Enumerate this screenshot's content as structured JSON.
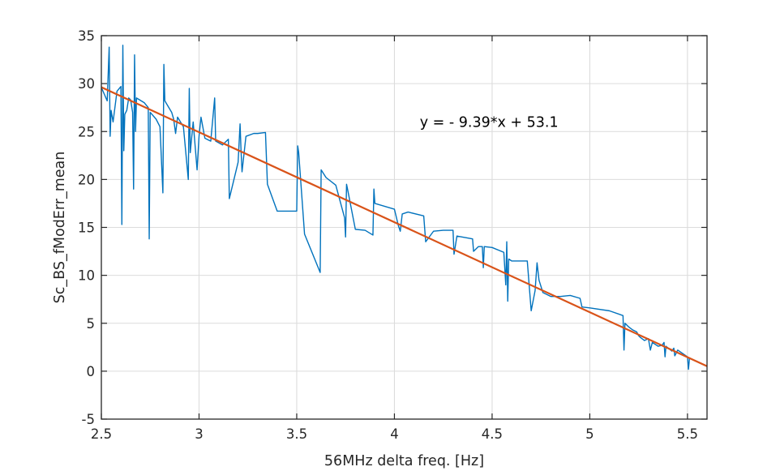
{
  "chart_data": {
    "type": "line",
    "xlabel": "56MHz delta freq. [Hz]",
    "ylabel": "Sc_BS_fModErr_mean",
    "xlim": [
      2.5,
      5.6
    ],
    "ylim": [
      -5,
      35
    ],
    "xticks": [
      2.5,
      3,
      3.5,
      4,
      4.5,
      5,
      5.5
    ],
    "xtick_labels": [
      "2.5",
      "3",
      "3.5",
      "4",
      "4.5",
      "5",
      "5.5"
    ],
    "yticks": [
      -5,
      0,
      5,
      10,
      15,
      20,
      25,
      30,
      35
    ],
    "ytick_labels": [
      "-5",
      "0",
      "5",
      "10",
      "15",
      "20",
      "25",
      "30",
      "35"
    ],
    "grid": true,
    "annotation": {
      "text": "y = - 9.39*x + 53.1",
      "x": 4.13,
      "y": 25.5
    },
    "series": [
      {
        "kind": "data",
        "color": "#0072BD",
        "points": [
          [
            2.5,
            29.6
          ],
          [
            2.53,
            28.2
          ],
          [
            2.54,
            33.8
          ],
          [
            2.545,
            24.5
          ],
          [
            2.55,
            27.2
          ],
          [
            2.56,
            26.0
          ],
          [
            2.58,
            29.2
          ],
          [
            2.6,
            29.7
          ],
          [
            2.605,
            15.3
          ],
          [
            2.61,
            34.0
          ],
          [
            2.615,
            23.0
          ],
          [
            2.62,
            26.8
          ],
          [
            2.63,
            27.2
          ],
          [
            2.64,
            28.5
          ],
          [
            2.65,
            28.3
          ],
          [
            2.66,
            27.0
          ],
          [
            2.665,
            19.0
          ],
          [
            2.67,
            33.0
          ],
          [
            2.675,
            25.0
          ],
          [
            2.68,
            28.5
          ],
          [
            2.72,
            28.0
          ],
          [
            2.74,
            27.5
          ],
          [
            2.745,
            13.8
          ],
          [
            2.75,
            27.0
          ],
          [
            2.78,
            26.3
          ],
          [
            2.8,
            25.5
          ],
          [
            2.815,
            18.6
          ],
          [
            2.82,
            32.0
          ],
          [
            2.825,
            28.2
          ],
          [
            2.86,
            27.0
          ],
          [
            2.87,
            26.3
          ],
          [
            2.88,
            24.8
          ],
          [
            2.89,
            26.5
          ],
          [
            2.92,
            25.5
          ],
          [
            2.945,
            20.0
          ],
          [
            2.95,
            29.5
          ],
          [
            2.955,
            22.8
          ],
          [
            2.97,
            26.0
          ],
          [
            2.99,
            21.0
          ],
          [
            3.0,
            24.5
          ],
          [
            3.01,
            26.5
          ],
          [
            3.03,
            24.3
          ],
          [
            3.06,
            24.0
          ],
          [
            3.08,
            28.5
          ],
          [
            3.085,
            24.0
          ],
          [
            3.12,
            23.6
          ],
          [
            3.15,
            24.2
          ],
          [
            3.155,
            18.0
          ],
          [
            3.2,
            21.8
          ],
          [
            3.21,
            25.8
          ],
          [
            3.215,
            23.0
          ],
          [
            3.22,
            20.8
          ],
          [
            3.24,
            24.5
          ],
          [
            3.28,
            24.8
          ],
          [
            3.3,
            24.8
          ],
          [
            3.34,
            24.9
          ],
          [
            3.35,
            19.5
          ],
          [
            3.4,
            16.7
          ],
          [
            3.5,
            16.7
          ],
          [
            3.505,
            23.5
          ],
          [
            3.51,
            22.8
          ],
          [
            3.54,
            14.3
          ],
          [
            3.62,
            10.3
          ],
          [
            3.625,
            21.0
          ],
          [
            3.65,
            20.2
          ],
          [
            3.7,
            19.4
          ],
          [
            3.745,
            16.0
          ],
          [
            3.75,
            14.0
          ],
          [
            3.755,
            19.5
          ],
          [
            3.76,
            19.0
          ],
          [
            3.8,
            14.8
          ],
          [
            3.85,
            14.7
          ],
          [
            3.89,
            14.2
          ],
          [
            3.895,
            19.0
          ],
          [
            3.9,
            17.5
          ],
          [
            4.0,
            16.9
          ],
          [
            4.02,
            15.2
          ],
          [
            4.03,
            14.6
          ],
          [
            4.04,
            16.4
          ],
          [
            4.07,
            16.6
          ],
          [
            4.15,
            16.2
          ],
          [
            4.16,
            13.5
          ],
          [
            4.2,
            14.6
          ],
          [
            4.25,
            14.7
          ],
          [
            4.3,
            14.7
          ],
          [
            4.305,
            12.2
          ],
          [
            4.32,
            14.1
          ],
          [
            4.4,
            13.8
          ],
          [
            4.405,
            12.5
          ],
          [
            4.43,
            13.0
          ],
          [
            4.45,
            13.0
          ],
          [
            4.455,
            10.8
          ],
          [
            4.46,
            13.0
          ],
          [
            4.5,
            12.9
          ],
          [
            4.56,
            12.4
          ],
          [
            4.57,
            9.0
          ],
          [
            4.575,
            13.5
          ],
          [
            4.58,
            7.3
          ],
          [
            4.585,
            11.7
          ],
          [
            4.6,
            11.5
          ],
          [
            4.68,
            11.5
          ],
          [
            4.7,
            6.3
          ],
          [
            4.72,
            8.4
          ],
          [
            4.73,
            11.3
          ],
          [
            4.74,
            9.5
          ],
          [
            4.76,
            8.2
          ],
          [
            4.8,
            7.8
          ],
          [
            4.85,
            7.8
          ],
          [
            4.9,
            7.9
          ],
          [
            4.95,
            7.6
          ],
          [
            4.96,
            6.7
          ],
          [
            5.0,
            6.6
          ],
          [
            5.1,
            6.3
          ],
          [
            5.17,
            5.8
          ],
          [
            5.175,
            2.2
          ],
          [
            5.18,
            5.0
          ],
          [
            5.2,
            4.6
          ],
          [
            5.22,
            4.3
          ],
          [
            5.24,
            4.1
          ],
          [
            5.25,
            3.7
          ],
          [
            5.26,
            3.5
          ],
          [
            5.28,
            3.2
          ],
          [
            5.3,
            3.4
          ],
          [
            5.31,
            2.2
          ],
          [
            5.32,
            3.0
          ],
          [
            5.35,
            2.6
          ],
          [
            5.37,
            2.7
          ],
          [
            5.38,
            3.0
          ],
          [
            5.385,
            1.5
          ],
          [
            5.39,
            2.6
          ],
          [
            5.42,
            2.1
          ],
          [
            5.43,
            2.4
          ],
          [
            5.435,
            1.6
          ],
          [
            5.45,
            2.2
          ],
          [
            5.5,
            1.5
          ],
          [
            5.505,
            0.2
          ],
          [
            5.51,
            1.3
          ]
        ]
      },
      {
        "kind": "fit",
        "color": "#D95319",
        "slope": -9.39,
        "intercept": 53.1,
        "x_range": [
          2.5,
          5.6
        ]
      }
    ]
  }
}
